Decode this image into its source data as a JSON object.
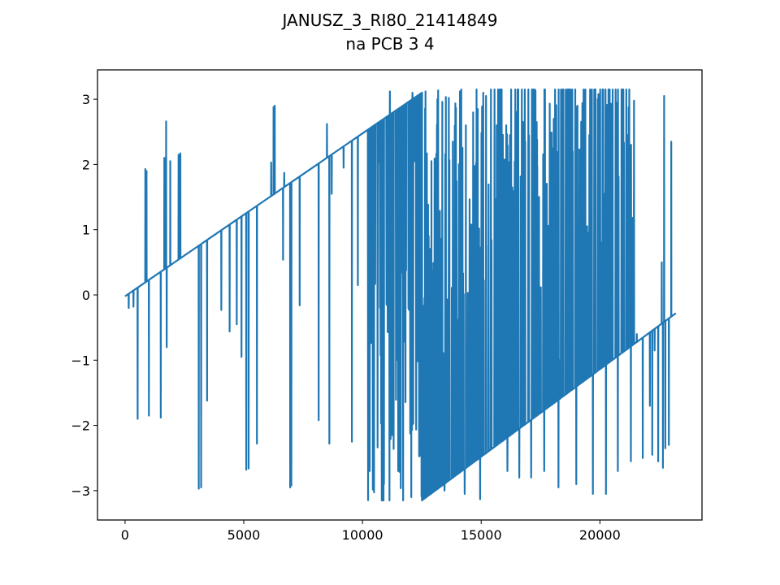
{
  "chart_data": {
    "type": "line",
    "title": "JANUSZ_3_RI80_21414849",
    "subtitle": "na PCB 3 4",
    "xlabel": "",
    "ylabel": "",
    "xlim": [
      -1160,
      24300
    ],
    "ylim": [
      -3.45,
      3.45
    ],
    "xticks": [
      0,
      5000,
      10000,
      15000,
      20000
    ],
    "yticks": [
      -3,
      -2,
      -1,
      0,
      1,
      2,
      3
    ],
    "xtick_labels": [
      "0",
      "5000",
      "10000",
      "15000",
      "20000"
    ],
    "ytick_labels": [
      "−3",
      "−2",
      "−1",
      "0",
      "1",
      "2",
      "3"
    ],
    "grid": false,
    "legend": "none",
    "series_color": "#1f77b4",
    "x_max": 23200,
    "trend": {
      "segment1": {
        "x": [
          0,
          12500
        ],
        "y": [
          -0.02,
          3.1
        ]
      },
      "segment2": {
        "x": [
          12500,
          23200
        ],
        "y": [
          -3.15,
          -0.28
        ]
      }
    },
    "dense_region": {
      "x": [
        10200,
        21500
      ]
    },
    "spikes": [
      [
        150,
        -0.2
      ],
      [
        350,
        -0.18
      ],
      [
        520,
        -1.9
      ],
      [
        850,
        1.93
      ],
      [
        900,
        1.9
      ],
      [
        1000,
        -1.85
      ],
      [
        1500,
        -1.88
      ],
      [
        1650,
        2.1
      ],
      [
        1720,
        2.66
      ],
      [
        1760,
        -0.8
      ],
      [
        1900,
        2.05
      ],
      [
        2250,
        2.15
      ],
      [
        2320,
        2.17
      ],
      [
        3100,
        -2.97
      ],
      [
        3200,
        -2.95
      ],
      [
        3450,
        -1.62
      ],
      [
        4050,
        -0.23
      ],
      [
        4400,
        -0.56
      ],
      [
        4700,
        -0.45
      ],
      [
        4900,
        -0.95
      ],
      [
        5100,
        -2.68
      ],
      [
        5200,
        -2.66
      ],
      [
        5550,
        -2.28
      ],
      [
        6150,
        2.03
      ],
      [
        6250,
        2.88
      ],
      [
        6300,
        2.9
      ],
      [
        6650,
        0.54
      ],
      [
        6700,
        1.87
      ],
      [
        6950,
        -2.95
      ],
      [
        7000,
        -2.92
      ],
      [
        7350,
        -0.16
      ],
      [
        8150,
        -1.92
      ],
      [
        8500,
        2.62
      ],
      [
        8600,
        -2.28
      ],
      [
        8700,
        1.55
      ],
      [
        9200,
        1.95
      ],
      [
        9550,
        -2.25
      ],
      [
        9800,
        0.15
      ]
    ],
    "dense_mid_spikes": [
      [
        10700,
        2.03
      ],
      [
        11300,
        -0.6
      ],
      [
        12200,
        2.05
      ],
      [
        12900,
        2.05
      ],
      [
        13300,
        -0.1
      ],
      [
        13500,
        2.1
      ],
      [
        13800,
        2.35
      ],
      [
        14350,
        2.6
      ],
      [
        14850,
        2.85
      ],
      [
        15200,
        -1.0
      ],
      [
        15650,
        2.6
      ],
      [
        15900,
        0.65
      ],
      [
        16200,
        1.95
      ],
      [
        16850,
        2.35
      ],
      [
        17000,
        2.05
      ],
      [
        17350,
        2.38
      ],
      [
        17650,
        0.1
      ],
      [
        17950,
        0.75
      ],
      [
        18300,
        -1.0
      ],
      [
        18600,
        2.6
      ],
      [
        18850,
        2.2
      ],
      [
        19050,
        2.9
      ],
      [
        19550,
        2.45
      ],
      [
        19800,
        -0.95
      ],
      [
        20050,
        -0.3
      ],
      [
        20400,
        2.18
      ],
      [
        21250,
        2.05
      ],
      [
        21550,
        -0.6
      ],
      [
        22100,
        -1.7
      ],
      [
        22300,
        -0.85
      ],
      [
        22450,
        -2.55
      ],
      [
        22600,
        0.5
      ],
      [
        22750,
        -2.35
      ],
      [
        22900,
        -2.3
      ],
      [
        23000,
        2.35
      ]
    ],
    "upper_spikes": [
      [
        11150,
        3.12
      ],
      [
        12100,
        3.1
      ],
      [
        12650,
        3.12
      ],
      [
        13150,
        3.0
      ],
      [
        14100,
        3.12
      ],
      [
        14800,
        3.15
      ],
      [
        15200,
        3.05
      ],
      [
        16050,
        2.6
      ],
      [
        16800,
        2.6
      ],
      [
        18050,
        2.7
      ],
      [
        18600,
        2.8
      ],
      [
        19000,
        2.8
      ],
      [
        19800,
        2.65
      ],
      [
        20750,
        2.58
      ],
      [
        21150,
        2.45
      ],
      [
        22700,
        3.05
      ]
    ],
    "lower_spikes": [
      [
        10300,
        -2.7
      ],
      [
        10900,
        -2.9
      ],
      [
        11500,
        -2.7
      ],
      [
        12050,
        -3.1
      ],
      [
        12500,
        -3.15
      ],
      [
        13450,
        -3.0
      ],
      [
        14300,
        -3.05
      ],
      [
        14950,
        -3.13
      ],
      [
        16100,
        -2.7
      ],
      [
        16600,
        -2.8
      ],
      [
        17100,
        -2.8
      ],
      [
        17650,
        -2.7
      ],
      [
        18250,
        -2.95
      ],
      [
        19000,
        -2.9
      ],
      [
        19700,
        -3.05
      ],
      [
        20250,
        -3.05
      ],
      [
        20750,
        -2.7
      ],
      [
        21300,
        -2.55
      ],
      [
        21800,
        -2.5
      ],
      [
        22200,
        -2.45
      ],
      [
        22650,
        -2.65
      ]
    ]
  }
}
